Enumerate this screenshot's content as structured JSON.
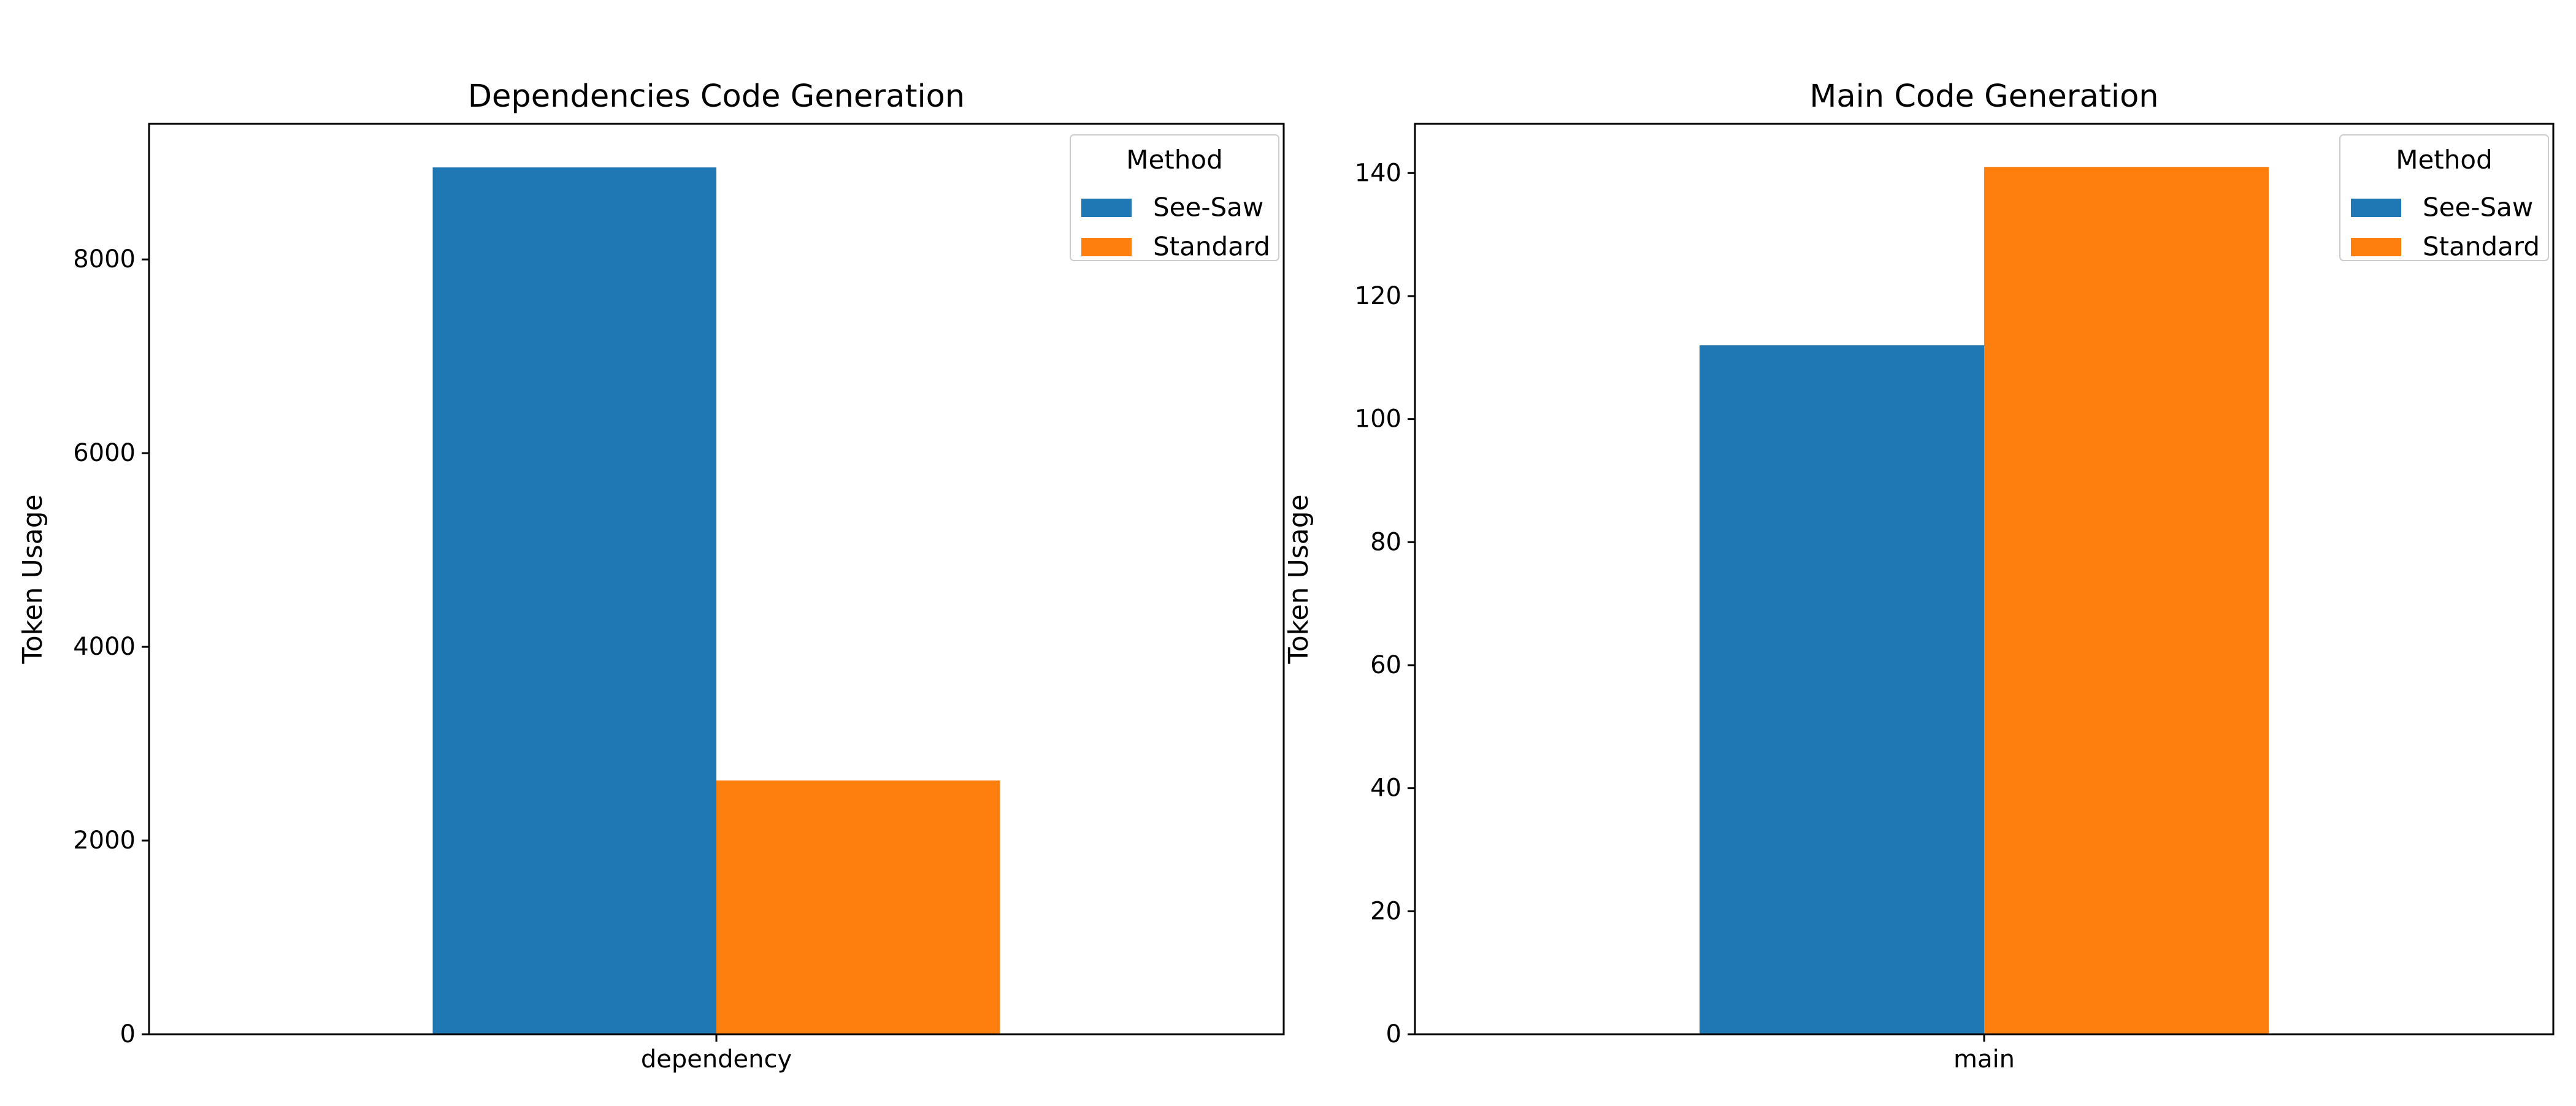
{
  "figure": {
    "background": "#ffffff"
  },
  "chart_data": [
    {
      "type": "bar",
      "title": "Dependencies Code Generation",
      "xlabel": "",
      "ylabel": "Token Usage",
      "categories": [
        "dependency"
      ],
      "series": [
        {
          "name": "See-Saw",
          "values": [
            8950
          ],
          "color": "#1f77b4"
        },
        {
          "name": "Standard",
          "values": [
            2620
          ],
          "color": "#ff7f0e"
        }
      ],
      "ylim": [
        0,
        9400
      ],
      "yticks": [
        0,
        2000,
        4000,
        6000,
        8000
      ],
      "grid": false,
      "legend": {
        "title": "Method",
        "placement": "top-right"
      }
    },
    {
      "type": "bar",
      "title": "Main Code Generation",
      "xlabel": "",
      "ylabel": "Token Usage",
      "categories": [
        "main"
      ],
      "series": [
        {
          "name": "See-Saw",
          "values": [
            112
          ],
          "color": "#1f77b4"
        },
        {
          "name": "Standard",
          "values": [
            141
          ],
          "color": "#ff7f0e"
        }
      ],
      "ylim": [
        0,
        148
      ],
      "yticks": [
        0,
        20,
        40,
        60,
        80,
        100,
        120,
        140
      ],
      "grid": false,
      "legend": {
        "title": "Method",
        "placement": "top-right"
      }
    }
  ]
}
